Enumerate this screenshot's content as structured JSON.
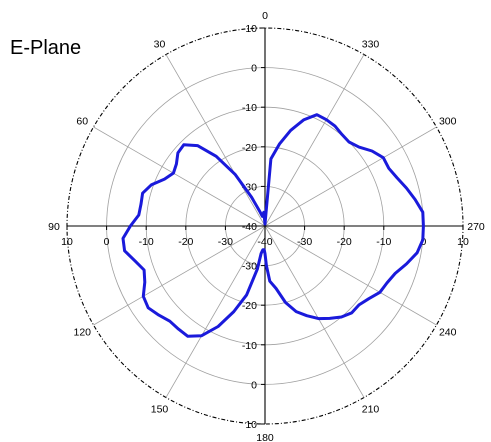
{
  "chart_data": {
    "type": "polar-line",
    "title": "E-Plane",
    "angle_direction": "counterclockwise",
    "zero_location": "top",
    "angle_labels": [
      "0",
      "30",
      "60",
      "90",
      "120",
      "150",
      "180",
      "210",
      "240",
      "270",
      "300",
      "330"
    ],
    "radial_range": [
      -40,
      10
    ],
    "radial_labels_horizontal": [
      "10",
      "0",
      "-10",
      "-20",
      "-30",
      "-40",
      "-30",
      "-20",
      "-10",
      "0",
      "10"
    ],
    "radial_labels_vertical": [
      "10",
      "0",
      "-10",
      "-20",
      "-30",
      "-40",
      "-30",
      "-20",
      "-10",
      "0",
      "10"
    ],
    "grid": true,
    "series": [
      {
        "color": "#1a1adb",
        "points": [
          [
            0,
            -39.5
          ],
          [
            5,
            -36.5
          ],
          [
            10,
            -37
          ],
          [
            15,
            -37.5
          ],
          [
            20,
            -36
          ],
          [
            25,
            -32
          ],
          [
            30,
            -25
          ],
          [
            35,
            -18.5
          ],
          [
            40,
            -13.5
          ],
          [
            45,
            -11
          ],
          [
            50,
            -11.3
          ],
          [
            55,
            -12.7
          ],
          [
            60,
            -13.3
          ],
          [
            65,
            -12
          ],
          [
            70,
            -9.5
          ],
          [
            75,
            -8
          ],
          [
            80,
            -8.2
          ],
          [
            85,
            -8
          ],
          [
            90,
            -6
          ],
          [
            95,
            -4
          ],
          [
            100,
            -4
          ],
          [
            105,
            -6
          ],
          [
            110,
            -7.5
          ],
          [
            115,
            -6.5
          ],
          [
            120,
            -4.5
          ],
          [
            125,
            -4
          ],
          [
            130,
            -5
          ],
          [
            135,
            -6
          ],
          [
            140,
            -6
          ],
          [
            145,
            -6
          ],
          [
            150,
            -8
          ],
          [
            155,
            -12
          ],
          [
            160,
            -17
          ],
          [
            165,
            -22
          ],
          [
            170,
            -29
          ],
          [
            172,
            -33
          ],
          [
            175,
            -34
          ],
          [
            178,
            -34
          ],
          [
            180,
            -33
          ],
          [
            182,
            -30
          ],
          [
            185,
            -26
          ],
          [
            190,
            -24
          ],
          [
            195,
            -20
          ],
          [
            200,
            -17
          ],
          [
            205,
            -15
          ],
          [
            210,
            -13
          ],
          [
            215,
            -11.5
          ],
          [
            220,
            -10
          ],
          [
            225,
            -9
          ],
          [
            230,
            -9
          ],
          [
            235,
            -8
          ],
          [
            240,
            -6.5
          ],
          [
            245,
            -6
          ],
          [
            250,
            -5
          ],
          [
            255,
            -3
          ],
          [
            260,
            -1
          ],
          [
            265,
            0
          ],
          [
            270,
            0
          ],
          [
            275,
            0
          ],
          [
            280,
            -1.5
          ],
          [
            285,
            -3
          ],
          [
            290,
            -4.5
          ],
          [
            295,
            -5.5
          ],
          [
            300,
            -5.5
          ],
          [
            305,
            -7
          ],
          [
            310,
            -9
          ],
          [
            315,
            -10
          ],
          [
            320,
            -9.8
          ],
          [
            325,
            -9.2
          ],
          [
            330,
            -9
          ],
          [
            335,
            -9
          ],
          [
            340,
            -11.5
          ],
          [
            345,
            -15
          ],
          [
            350,
            -19
          ],
          [
            355,
            -23
          ],
          [
            360,
            -39.5
          ]
        ]
      }
    ]
  }
}
